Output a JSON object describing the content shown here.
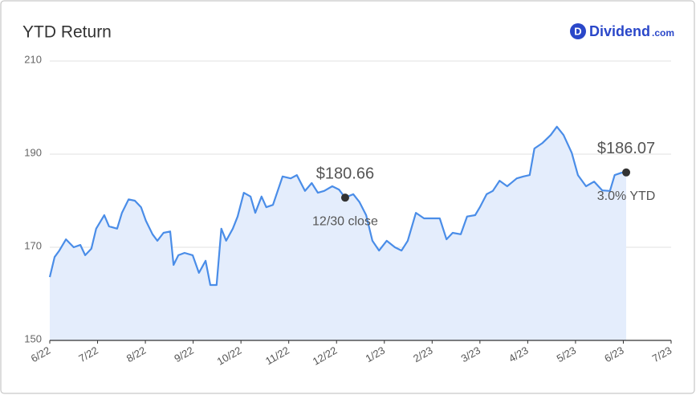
{
  "chart_data": {
    "type": "line",
    "title": "YTD Return",
    "logo": {
      "icon": "D",
      "name": "Dividend",
      "suffix": ".com"
    },
    "x": [
      0,
      0.1,
      0.2,
      0.34,
      0.5,
      0.64,
      0.74,
      0.87,
      0.97,
      1.14,
      1.24,
      1.41,
      1.51,
      1.65,
      1.78,
      1.91,
      2.01,
      2.15,
      2.25,
      2.38,
      2.52,
      2.59,
      2.69,
      2.82,
      2.99,
      3.12,
      3.26,
      3.36,
      3.49,
      3.59,
      3.69,
      3.83,
      3.93,
      4.06,
      4.2,
      4.3,
      4.43,
      4.53,
      4.67,
      4.87,
      5.04,
      5.17,
      5.34,
      5.48,
      5.61,
      5.74,
      5.91,
      6.05,
      6.18,
      6.35,
      6.48,
      6.62,
      6.75,
      6.89,
      7.05,
      7.22,
      7.36,
      7.49,
      7.66,
      7.83,
      8.03,
      8.16,
      8.3,
      8.43,
      8.6,
      8.73,
      8.9,
      9.0,
      9.14,
      9.27,
      9.41,
      9.57,
      9.77,
      9.91,
      10.04,
      10.14,
      10.31,
      10.48,
      10.61,
      10.75,
      10.92,
      11.05,
      11.22,
      11.39,
      11.56,
      11.72,
      11.82,
      11.96,
      12.06
    ],
    "series": [
      {
        "name": "YTD Return",
        "color": "#4a8de8",
        "fill": "#e4edfc",
        "values": [
          163.6,
          167.9,
          169.3,
          171.7,
          170.0,
          170.5,
          168.3,
          169.7,
          174.0,
          176.9,
          174.5,
          174.0,
          177.4,
          180.3,
          180.0,
          178.6,
          175.7,
          172.8,
          171.4,
          173.1,
          173.4,
          166.2,
          168.3,
          168.8,
          168.3,
          164.5,
          167.1,
          161.9,
          161.9,
          174.0,
          171.4,
          174.0,
          176.6,
          181.7,
          180.9,
          177.4,
          180.9,
          178.6,
          179.1,
          185.2,
          184.8,
          185.5,
          182.1,
          183.8,
          181.7,
          182.1,
          183.1,
          182.4,
          180.66,
          181.4,
          179.7,
          176.9,
          171.4,
          169.3,
          171.4,
          170.0,
          169.3,
          171.4,
          177.4,
          176.2,
          176.2,
          176.2,
          171.7,
          173.1,
          172.8,
          176.6,
          176.9,
          178.6,
          181.4,
          182.1,
          184.3,
          183.1,
          184.8,
          185.2,
          185.5,
          191.2,
          192.4,
          194.1,
          195.9,
          194.1,
          190.3,
          185.5,
          183.1,
          184.1,
          182.2,
          182.1,
          185.5,
          186.0,
          186.07
        ]
      }
    ],
    "annotations": [
      {
        "x": 6.18,
        "y": 180.66,
        "label": "$180.66",
        "sublabel": "12/30 close"
      },
      {
        "x": 12.06,
        "y": 186.07,
        "label": "$186.07",
        "sublabel": "3.0% YTD"
      }
    ],
    "xlim": [
      0,
      13
    ],
    "xticks": [
      {
        "value": 0,
        "label": "6/22"
      },
      {
        "value": 1,
        "label": "7/22"
      },
      {
        "value": 2,
        "label": "8/22"
      },
      {
        "value": 3,
        "label": "9/22"
      },
      {
        "value": 4,
        "label": "10/22"
      },
      {
        "value": 5,
        "label": "11/22"
      },
      {
        "value": 6,
        "label": "12/22"
      },
      {
        "value": 7,
        "label": "1/23"
      },
      {
        "value": 8,
        "label": "2/23"
      },
      {
        "value": 9,
        "label": "3/23"
      },
      {
        "value": 10,
        "label": "4/23"
      },
      {
        "value": 11,
        "label": "5/23"
      },
      {
        "value": 12,
        "label": "6/23"
      },
      {
        "value": 13,
        "label": "7/23"
      }
    ],
    "ylim": [
      150,
      210
    ],
    "yticks": [
      150,
      170,
      190,
      210
    ],
    "grid": true
  }
}
